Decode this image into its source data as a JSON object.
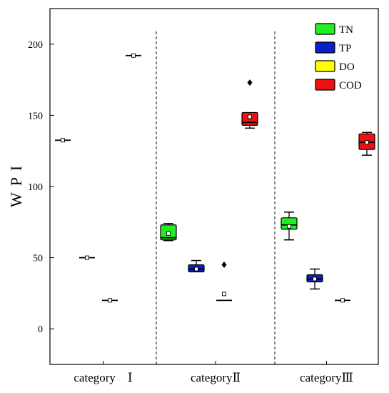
{
  "chart_data": {
    "type": "box",
    "ylabel": "W P I",
    "ylim": [
      -25,
      225
    ],
    "yticks": [
      0,
      50,
      100,
      150,
      200
    ],
    "categories": [
      "category　Ⅰ",
      "categoryⅡ",
      "categoryⅢ"
    ],
    "series": [
      {
        "name": "TN",
        "color": "#22ee22",
        "boxes": [
          {
            "min": 132.5,
            "q1": 132.5,
            "median": 132.5,
            "q3": 132.5,
            "max": 132.5,
            "mean": 132.5,
            "outliers": []
          },
          {
            "min": 62,
            "q1": 62.5,
            "median": 64,
            "q3": 73,
            "max": 74,
            "mean": 67,
            "outliers": []
          },
          {
            "min": 62.5,
            "q1": 70,
            "median": 73,
            "q3": 78,
            "max": 82,
            "mean": 72,
            "outliers": []
          }
        ]
      },
      {
        "name": "TP",
        "color": "#0a1fc8",
        "boxes": [
          {
            "min": 50,
            "q1": 50,
            "median": 50,
            "q3": 50,
            "max": 50,
            "mean": 50,
            "outliers": []
          },
          {
            "min": 40,
            "q1": 40,
            "median": 42,
            "q3": 45,
            "max": 48,
            "mean": 42,
            "outliers": []
          },
          {
            "min": 28,
            "q1": 33,
            "median": 35,
            "q3": 38,
            "max": 42,
            "mean": 35,
            "outliers": []
          }
        ]
      },
      {
        "name": "DO",
        "color": "#ffff00",
        "boxes": [
          {
            "min": 20,
            "q1": 20,
            "median": 20,
            "q3": 20,
            "max": 20,
            "mean": 20,
            "outliers": []
          },
          {
            "min": 20,
            "q1": 20,
            "median": 20,
            "q3": 20,
            "max": 20,
            "mean": 24.5,
            "outliers": [
              45
            ]
          },
          {
            "min": 20,
            "q1": 20,
            "median": 20,
            "q3": 20,
            "max": 20,
            "mean": 20,
            "outliers": []
          }
        ]
      },
      {
        "name": "COD",
        "color": "#ee1111",
        "boxes": [
          {
            "min": 192,
            "q1": 192,
            "median": 192,
            "q3": 192,
            "max": 192,
            "mean": 192,
            "outliers": []
          },
          {
            "min": 141,
            "q1": 143,
            "median": 145,
            "q3": 152,
            "max": 152,
            "mean": 149,
            "outliers": [
              173
            ]
          },
          {
            "min": 122,
            "q1": 126,
            "median": 131,
            "q3": 137,
            "max": 138,
            "mean": 131,
            "outliers": []
          }
        ]
      }
    ],
    "legend": {
      "position": "top-right"
    },
    "grid": false,
    "category_separators": "dashed"
  }
}
